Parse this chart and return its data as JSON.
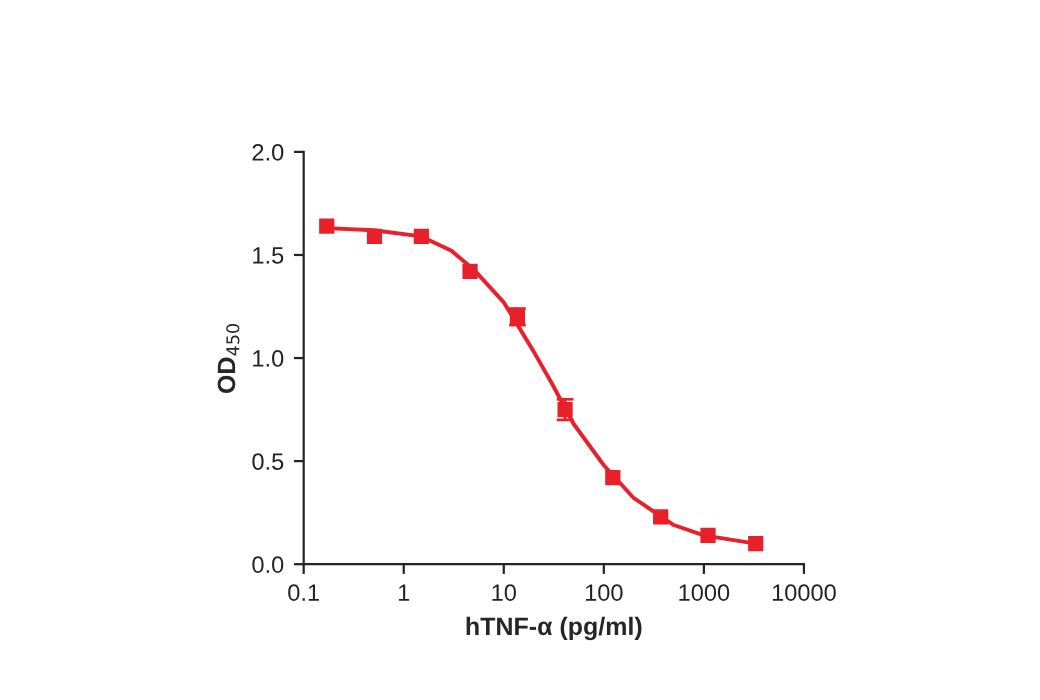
{
  "chart_data": {
    "type": "scatter",
    "xlabel": "hTNF-α (pg/ml)",
    "ylabel": "OD$_{450}$",
    "log": "x",
    "xlim": [
      0.1,
      10000
    ],
    "xticks": [
      0.1,
      1,
      10,
      100,
      1000,
      10000
    ],
    "ylim": [
      0,
      2
    ],
    "yticks": [
      {
        "value": 0,
        "label": "0.0"
      },
      {
        "value": 0.5,
        "label": "0.5"
      },
      {
        "value": 1,
        "label": "1.0"
      },
      {
        "value": 1.5,
        "label": "1.5"
      },
      {
        "value": 2,
        "label": "2.0"
      }
    ],
    "grid": false,
    "series": [
      {
        "type": "line",
        "color": "#e8202a",
        "line_style": "solid",
        "marker": "none",
        "x": [
          0.17,
          0.5,
          1.5,
          3,
          5,
          10,
          20,
          30,
          50,
          100,
          200,
          500,
          1000,
          3300
        ],
        "values": [
          1.63,
          1.62,
          1.59,
          1.52,
          1.43,
          1.27,
          1.03,
          0.88,
          0.68,
          0.48,
          0.32,
          0.19,
          0.14,
          0.1
        ]
      },
      {
        "color": "#e8202a",
        "marker": "square",
        "x": [
          0.17,
          0.51,
          1.5,
          4.6,
          13.7,
          41,
          123,
          370,
          1100,
          3300
        ],
        "values": [
          1.64,
          1.59,
          1.59,
          1.42,
          1.2,
          0.75,
          0.42,
          0.23,
          0.14,
          0.1
        ],
        "errors": [
          null,
          null,
          null,
          null,
          0.04,
          0.05,
          null,
          null,
          null,
          null
        ]
      }
    ]
  }
}
